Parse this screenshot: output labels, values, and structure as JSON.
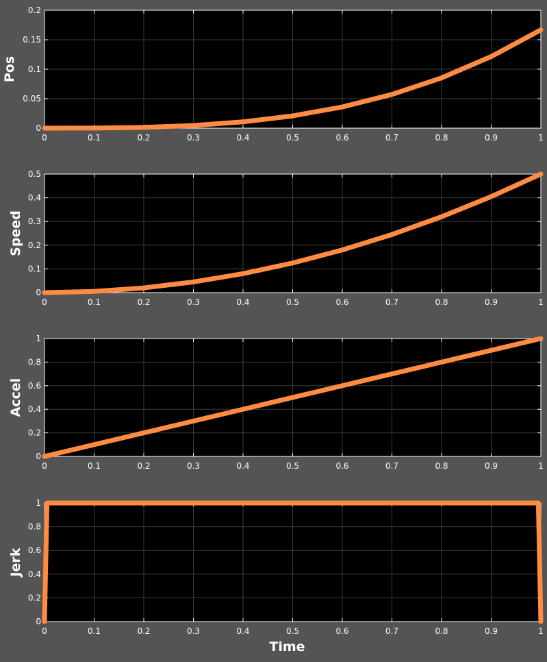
{
  "colors": {
    "figure_bg": "#545454",
    "axes_bg": "#000000",
    "grid": "#3c3c3c",
    "text": "#ffffff",
    "line": "#ff8c42"
  },
  "chart_data": [
    {
      "type": "line",
      "ylabel": "Pos",
      "xlabel": "",
      "xlim": [
        0,
        1
      ],
      "ylim": [
        0,
        0.2
      ],
      "xticks": [
        "0",
        "0.1",
        "0.2",
        "0.3",
        "0.4",
        "0.5",
        "0.6",
        "0.7",
        "0.8",
        "0.9",
        "1"
      ],
      "yticks": [
        "0",
        "0.05",
        "0.1",
        "0.15",
        "0.2"
      ],
      "grid": true,
      "x": [
        0,
        0.1,
        0.2,
        0.3,
        0.4,
        0.5,
        0.6,
        0.7,
        0.8,
        0.9,
        1.0
      ],
      "y": [
        0,
        0.0002,
        0.0013,
        0.0045,
        0.0107,
        0.0208,
        0.036,
        0.0572,
        0.0853,
        0.1215,
        0.1667
      ]
    },
    {
      "type": "line",
      "ylabel": "Speed",
      "xlabel": "",
      "xlim": [
        0,
        1
      ],
      "ylim": [
        0,
        0.5
      ],
      "xticks": [
        "0",
        "0.1",
        "0.2",
        "0.3",
        "0.4",
        "0.5",
        "0.6",
        "0.7",
        "0.8",
        "0.9",
        "1"
      ],
      "yticks": [
        "0",
        "0.1",
        "0.2",
        "0.3",
        "0.4",
        "0.5"
      ],
      "grid": true,
      "x": [
        0,
        0.1,
        0.2,
        0.3,
        0.4,
        0.5,
        0.6,
        0.7,
        0.8,
        0.9,
        1.0
      ],
      "y": [
        0,
        0.005,
        0.02,
        0.045,
        0.08,
        0.125,
        0.18,
        0.245,
        0.32,
        0.405,
        0.5
      ]
    },
    {
      "type": "line",
      "ylabel": "Accel",
      "xlabel": "",
      "xlim": [
        0,
        1
      ],
      "ylim": [
        0,
        1
      ],
      "xticks": [
        "0",
        "0.1",
        "0.2",
        "0.3",
        "0.4",
        "0.5",
        "0.6",
        "0.7",
        "0.8",
        "0.9",
        "1"
      ],
      "yticks": [
        "0",
        "0.2",
        "0.4",
        "0.6",
        "0.8",
        "1"
      ],
      "grid": true,
      "x": [
        0,
        1
      ],
      "y": [
        0,
        1
      ]
    },
    {
      "type": "line",
      "ylabel": "Jerk",
      "xlabel": "Time",
      "xlim": [
        0,
        1
      ],
      "ylim": [
        0,
        1
      ],
      "xticks": [
        "0",
        "0.1",
        "0.2",
        "0.3",
        "0.4",
        "0.5",
        "0.6",
        "0.7",
        "0.8",
        "0.9",
        "1"
      ],
      "yticks": [
        "0",
        "0.2",
        "0.4",
        "0.6",
        "0.8",
        "1"
      ],
      "grid": true,
      "x": [
        0,
        0.005,
        0.995,
        1
      ],
      "y": [
        0,
        1,
        1,
        0
      ]
    }
  ]
}
